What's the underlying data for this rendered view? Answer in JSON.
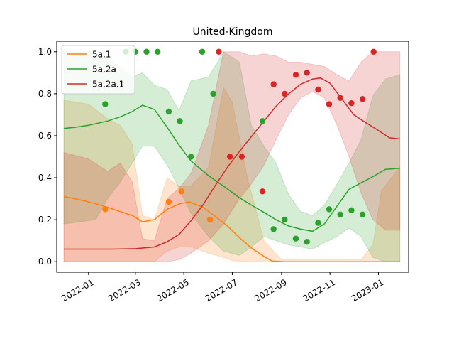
{
  "chart_data": {
    "type": "line",
    "title": "United-Kingdom",
    "xlabel": "",
    "ylabel": "",
    "xlim": [
      "2021-11-22",
      "2023-02-08"
    ],
    "ylim": [
      -0.05,
      1.05
    ],
    "grid": false,
    "legend_position": "top-left",
    "x_ticks": [
      "2022-01",
      "2022-03",
      "2022-05",
      "2022-07",
      "2022-09",
      "2022-11",
      "2023-01"
    ],
    "y_ticks": [
      "0.0",
      "0.2",
      "0.4",
      "0.6",
      "0.8",
      "1.0"
    ],
    "series": [
      {
        "name": "5a.1",
        "color": "#ff7f0e",
        "line": [
          [
            "2021-12-01",
            0.31
          ],
          [
            "2021-12-15",
            0.3
          ],
          [
            "2022-01-01",
            0.285
          ],
          [
            "2022-01-20",
            0.265
          ],
          [
            "2022-02-05",
            0.245
          ],
          [
            "2022-02-25",
            0.22
          ],
          [
            "2022-03-10",
            0.19
          ],
          [
            "2022-03-25",
            0.2
          ],
          [
            "2022-04-10",
            0.25
          ],
          [
            "2022-04-25",
            0.275
          ],
          [
            "2022-05-08",
            0.285
          ],
          [
            "2022-05-25",
            0.26
          ],
          [
            "2022-06-10",
            0.215
          ],
          [
            "2022-06-25",
            0.17
          ],
          [
            "2022-07-10",
            0.115
          ],
          [
            "2022-07-25",
            0.065
          ],
          [
            "2022-08-10",
            0.025
          ],
          [
            "2022-08-20",
            0.003
          ],
          [
            "2022-09-05",
            0.0
          ],
          [
            "2023-01-28",
            0.0
          ]
        ],
        "band": [
          [
            "2021-12-01",
            0.0,
            0.77
          ],
          [
            "2022-01-01",
            0.0,
            0.75
          ],
          [
            "2022-01-25",
            0.0,
            0.68
          ],
          [
            "2022-02-10",
            0.0,
            0.65
          ],
          [
            "2022-02-25",
            0.0,
            0.56
          ],
          [
            "2022-03-10",
            0.0,
            0.22
          ],
          [
            "2022-03-25",
            0.0,
            0.2
          ],
          [
            "2022-04-10",
            0.05,
            0.4
          ],
          [
            "2022-04-25",
            0.07,
            0.36
          ],
          [
            "2022-05-10",
            0.07,
            0.36
          ],
          [
            "2022-06-01",
            0.04,
            0.45
          ],
          [
            "2022-06-20",
            0.02,
            0.83
          ],
          [
            "2022-07-01",
            0.005,
            0.76
          ],
          [
            "2022-07-20",
            0.0,
            0.4
          ],
          [
            "2022-08-10",
            0.0,
            0.1
          ],
          [
            "2022-09-01",
            0.0,
            0.01
          ],
          [
            "2022-12-10",
            0.0,
            0.01
          ],
          [
            "2022-12-25",
            0.0,
            0.08
          ],
          [
            "2023-01-05",
            0.0,
            0.34
          ],
          [
            "2023-01-28",
            0.0,
            0.45
          ]
        ],
        "points": [
          [
            "2022-01-22",
            0.25
          ],
          [
            "2022-04-12",
            0.285
          ],
          [
            "2022-04-28",
            0.335
          ],
          [
            "2022-06-03",
            0.2
          ]
        ]
      },
      {
        "name": "5a.2a",
        "color": "#2ca02c",
        "line": [
          [
            "2021-12-01",
            0.635
          ],
          [
            "2021-12-15",
            0.64
          ],
          [
            "2022-01-01",
            0.65
          ],
          [
            "2022-01-25",
            0.67
          ],
          [
            "2022-02-10",
            0.69
          ],
          [
            "2022-02-25",
            0.715
          ],
          [
            "2022-03-10",
            0.745
          ],
          [
            "2022-03-25",
            0.725
          ],
          [
            "2022-04-10",
            0.64
          ],
          [
            "2022-04-25",
            0.555
          ],
          [
            "2022-05-10",
            0.48
          ],
          [
            "2022-06-01",
            0.41
          ],
          [
            "2022-06-20",
            0.36
          ],
          [
            "2022-07-10",
            0.305
          ],
          [
            "2022-07-25",
            0.27
          ],
          [
            "2022-08-10",
            0.235
          ],
          [
            "2022-08-25",
            0.2
          ],
          [
            "2022-09-10",
            0.17
          ],
          [
            "2022-09-25",
            0.155
          ],
          [
            "2022-10-10",
            0.145
          ],
          [
            "2022-10-25",
            0.18
          ],
          [
            "2022-11-10",
            0.265
          ],
          [
            "2022-11-25",
            0.345
          ],
          [
            "2022-12-10",
            0.375
          ],
          [
            "2022-12-25",
            0.405
          ],
          [
            "2023-01-10",
            0.44
          ],
          [
            "2023-01-28",
            0.445
          ]
        ],
        "band": [
          [
            "2021-12-01",
            0.18,
            1.0
          ],
          [
            "2022-01-10",
            0.2,
            1.0
          ],
          [
            "2022-01-25",
            0.3,
            0.97
          ],
          [
            "2022-02-10",
            0.38,
            0.92
          ],
          [
            "2022-02-25",
            0.47,
            0.88
          ],
          [
            "2022-03-10",
            0.55,
            0.9
          ],
          [
            "2022-03-25",
            0.55,
            0.84
          ],
          [
            "2022-04-10",
            0.46,
            0.82
          ],
          [
            "2022-04-25",
            0.35,
            0.72
          ],
          [
            "2022-05-10",
            0.23,
            0.86
          ],
          [
            "2022-06-01",
            0.12,
            0.88
          ],
          [
            "2022-06-20",
            0.05,
            1.0
          ],
          [
            "2022-07-10",
            0.03,
            0.95
          ],
          [
            "2022-07-25",
            0.07,
            0.65
          ],
          [
            "2022-08-10",
            0.12,
            0.55
          ],
          [
            "2022-08-25",
            0.1,
            0.47
          ],
          [
            "2022-09-10",
            0.08,
            0.32
          ],
          [
            "2022-09-25",
            0.07,
            0.24
          ],
          [
            "2022-10-10",
            0.06,
            0.22
          ],
          [
            "2022-10-25",
            0.09,
            0.27
          ],
          [
            "2022-11-10",
            0.12,
            0.37
          ],
          [
            "2022-11-25",
            0.16,
            0.47
          ],
          [
            "2022-12-10",
            0.12,
            0.58
          ],
          [
            "2022-12-25",
            0.02,
            0.79
          ],
          [
            "2023-01-10",
            0.0,
            0.87
          ],
          [
            "2023-01-28",
            0.0,
            0.89
          ]
        ],
        "points": [
          [
            "2022-01-22",
            0.75
          ],
          [
            "2022-02-17",
            1.0
          ],
          [
            "2022-03-01",
            1.0
          ],
          [
            "2022-03-15",
            1.0
          ],
          [
            "2022-03-29",
            1.0
          ],
          [
            "2022-04-12",
            0.715
          ],
          [
            "2022-04-26",
            0.67
          ],
          [
            "2022-05-10",
            0.5
          ],
          [
            "2022-05-24",
            1.0
          ],
          [
            "2022-06-07",
            0.8
          ],
          [
            "2022-08-08",
            0.67
          ],
          [
            "2022-08-22",
            0.155
          ],
          [
            "2022-09-05",
            0.2
          ],
          [
            "2022-09-19",
            0.11
          ],
          [
            "2022-10-03",
            0.095
          ],
          [
            "2022-10-17",
            0.185
          ],
          [
            "2022-10-31",
            0.25
          ],
          [
            "2022-11-14",
            0.225
          ],
          [
            "2022-11-28",
            0.245
          ],
          [
            "2022-12-12",
            0.225
          ]
        ]
      },
      {
        "name": "5a.2a.1",
        "color": "#d62728",
        "line": [
          [
            "2021-12-01",
            0.06
          ],
          [
            "2022-01-01",
            0.06
          ],
          [
            "2022-02-01",
            0.06
          ],
          [
            "2022-03-01",
            0.062
          ],
          [
            "2022-03-25",
            0.07
          ],
          [
            "2022-04-10",
            0.095
          ],
          [
            "2022-04-25",
            0.13
          ],
          [
            "2022-05-10",
            0.195
          ],
          [
            "2022-05-25",
            0.27
          ],
          [
            "2022-06-10",
            0.365
          ],
          [
            "2022-06-25",
            0.45
          ],
          [
            "2022-07-10",
            0.525
          ],
          [
            "2022-07-25",
            0.595
          ],
          [
            "2022-08-10",
            0.67
          ],
          [
            "2022-08-25",
            0.74
          ],
          [
            "2022-09-10",
            0.8
          ],
          [
            "2022-09-25",
            0.845
          ],
          [
            "2022-10-10",
            0.87
          ],
          [
            "2022-10-20",
            0.875
          ],
          [
            "2022-11-01",
            0.85
          ],
          [
            "2022-11-15",
            0.78
          ],
          [
            "2022-12-01",
            0.7
          ],
          [
            "2022-12-15",
            0.665
          ],
          [
            "2023-01-01",
            0.625
          ],
          [
            "2023-01-15",
            0.59
          ],
          [
            "2023-01-28",
            0.585
          ]
        ],
        "band": [
          [
            "2021-12-01",
            0.0,
            0.52
          ],
          [
            "2022-01-01",
            0.0,
            0.49
          ],
          [
            "2022-01-25",
            0.0,
            0.43
          ],
          [
            "2022-02-10",
            0.0,
            0.47
          ],
          [
            "2022-02-25",
            0.0,
            0.38
          ],
          [
            "2022-03-10",
            0.0,
            0.11
          ],
          [
            "2022-03-25",
            0.0,
            0.1
          ],
          [
            "2022-04-10",
            0.0,
            0.3
          ],
          [
            "2022-04-25",
            0.01,
            0.35
          ],
          [
            "2022-05-10",
            0.04,
            0.42
          ],
          [
            "2022-06-01",
            0.1,
            0.65
          ],
          [
            "2022-06-20",
            0.18,
            1.0
          ],
          [
            "2022-07-10",
            0.3,
            1.0
          ],
          [
            "2022-07-25",
            0.37,
            0.98
          ],
          [
            "2022-08-10",
            0.46,
            0.99
          ],
          [
            "2022-08-25",
            0.58,
            0.98
          ],
          [
            "2022-09-10",
            0.7,
            0.95
          ],
          [
            "2022-09-25",
            0.78,
            0.95
          ],
          [
            "2022-10-10",
            0.81,
            0.94
          ],
          [
            "2022-10-25",
            0.78,
            0.93
          ],
          [
            "2022-11-10",
            0.65,
            0.89
          ],
          [
            "2022-11-25",
            0.5,
            0.86
          ],
          [
            "2022-12-10",
            0.33,
            0.95
          ],
          [
            "2022-12-25",
            0.2,
            1.0
          ],
          [
            "2023-01-10",
            0.15,
            1.0
          ],
          [
            "2023-01-28",
            0.15,
            1.0
          ]
        ],
        "points": [
          [
            "2022-06-14",
            1.0
          ],
          [
            "2022-06-28",
            0.5
          ],
          [
            "2022-07-13",
            0.5
          ],
          [
            "2022-08-08",
            0.335
          ],
          [
            "2022-08-22",
            0.845
          ],
          [
            "2022-09-05",
            0.8
          ],
          [
            "2022-09-19",
            0.89
          ],
          [
            "2022-10-03",
            0.9
          ],
          [
            "2022-10-17",
            0.82
          ],
          [
            "2022-10-31",
            0.75
          ],
          [
            "2022-11-14",
            0.78
          ],
          [
            "2022-11-28",
            0.755
          ],
          [
            "2022-12-12",
            0.775
          ],
          [
            "2022-12-26",
            1.0
          ]
        ]
      }
    ]
  }
}
